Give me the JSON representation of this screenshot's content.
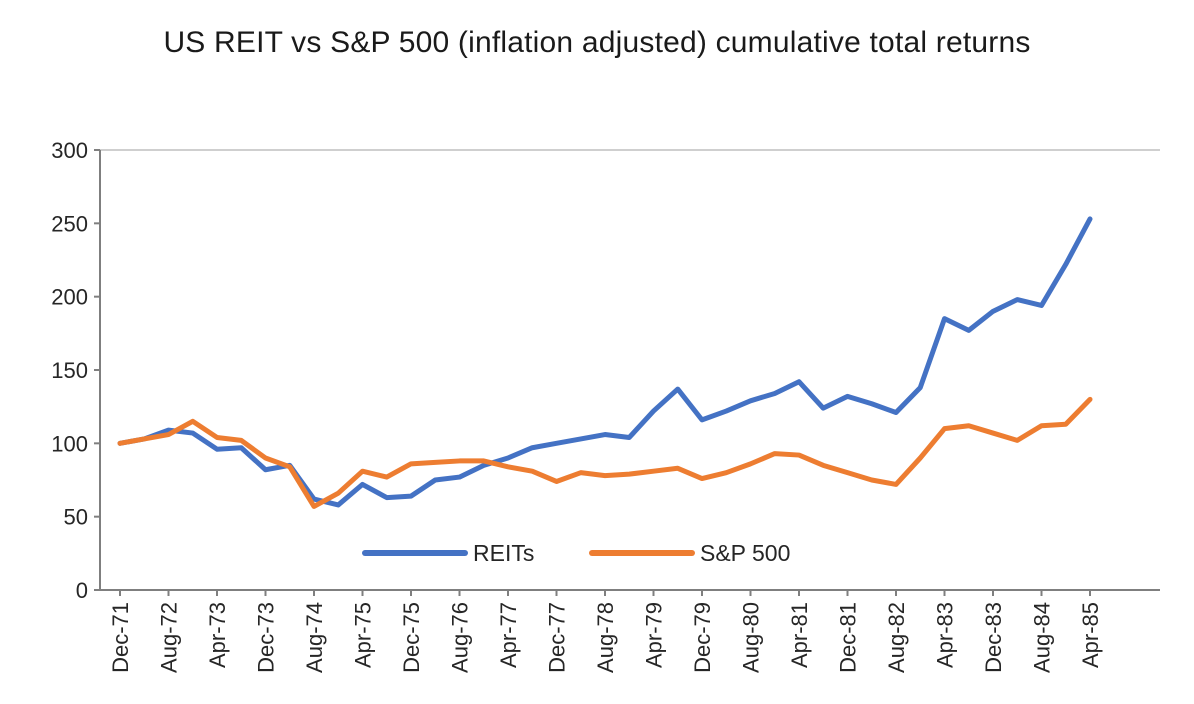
{
  "page": {
    "background": "#FFFFFF"
  },
  "chart_data": {
    "type": "line",
    "title": "US REIT vs S&P 500 (inflation adjusted) cumulative total returns",
    "categories": [
      "Dec-71",
      "Apr-72",
      "Aug-72",
      "Dec-72",
      "Apr-73",
      "Aug-73",
      "Dec-73",
      "Apr-74",
      "Aug-74",
      "Dec-74",
      "Apr-75",
      "Aug-75",
      "Dec-75",
      "Apr-76",
      "Aug-76",
      "Dec-76",
      "Apr-77",
      "Aug-77",
      "Dec-77",
      "Apr-78",
      "Aug-78",
      "Dec-78",
      "Apr-79",
      "Aug-79",
      "Dec-79",
      "Apr-80",
      "Aug-80",
      "Dec-80",
      "Apr-81",
      "Aug-81",
      "Dec-81",
      "Apr-82",
      "Aug-82",
      "Dec-82",
      "Apr-83",
      "Aug-83",
      "Dec-83",
      "Apr-84",
      "Aug-84",
      "Dec-84",
      "Apr-85"
    ],
    "x_label_step": 2,
    "x_axis_label_rotation_deg": 90,
    "series": [
      {
        "name": "REITs",
        "color": "#4472C4",
        "values": [
          100,
          103,
          109,
          107,
          96,
          97,
          82,
          85,
          62,
          58,
          72,
          63,
          64,
          75,
          77,
          85,
          90,
          97,
          100,
          103,
          106,
          104,
          122,
          137,
          116,
          122,
          129,
          134,
          142,
          124,
          132,
          127,
          121,
          138,
          185,
          177,
          190,
          198,
          194,
          222,
          253
        ]
      },
      {
        "name": "S&P 500",
        "color": "#ED7D31",
        "values": [
          100,
          103,
          106,
          115,
          104,
          102,
          90,
          84,
          57,
          66,
          81,
          77,
          86,
          87,
          88,
          88,
          84,
          81,
          74,
          80,
          78,
          79,
          81,
          83,
          76,
          80,
          86,
          93,
          92,
          85,
          80,
          75,
          72,
          90,
          110,
          112,
          107,
          102,
          112,
          113,
          130
        ]
      }
    ],
    "ylim": [
      0,
      300
    ],
    "yticks": [
      0,
      50,
      100,
      150,
      200,
      250,
      300
    ],
    "grid": "single horizontal border line at y=300 only",
    "legend_position": "inside-bottom",
    "start_value": 100
  }
}
